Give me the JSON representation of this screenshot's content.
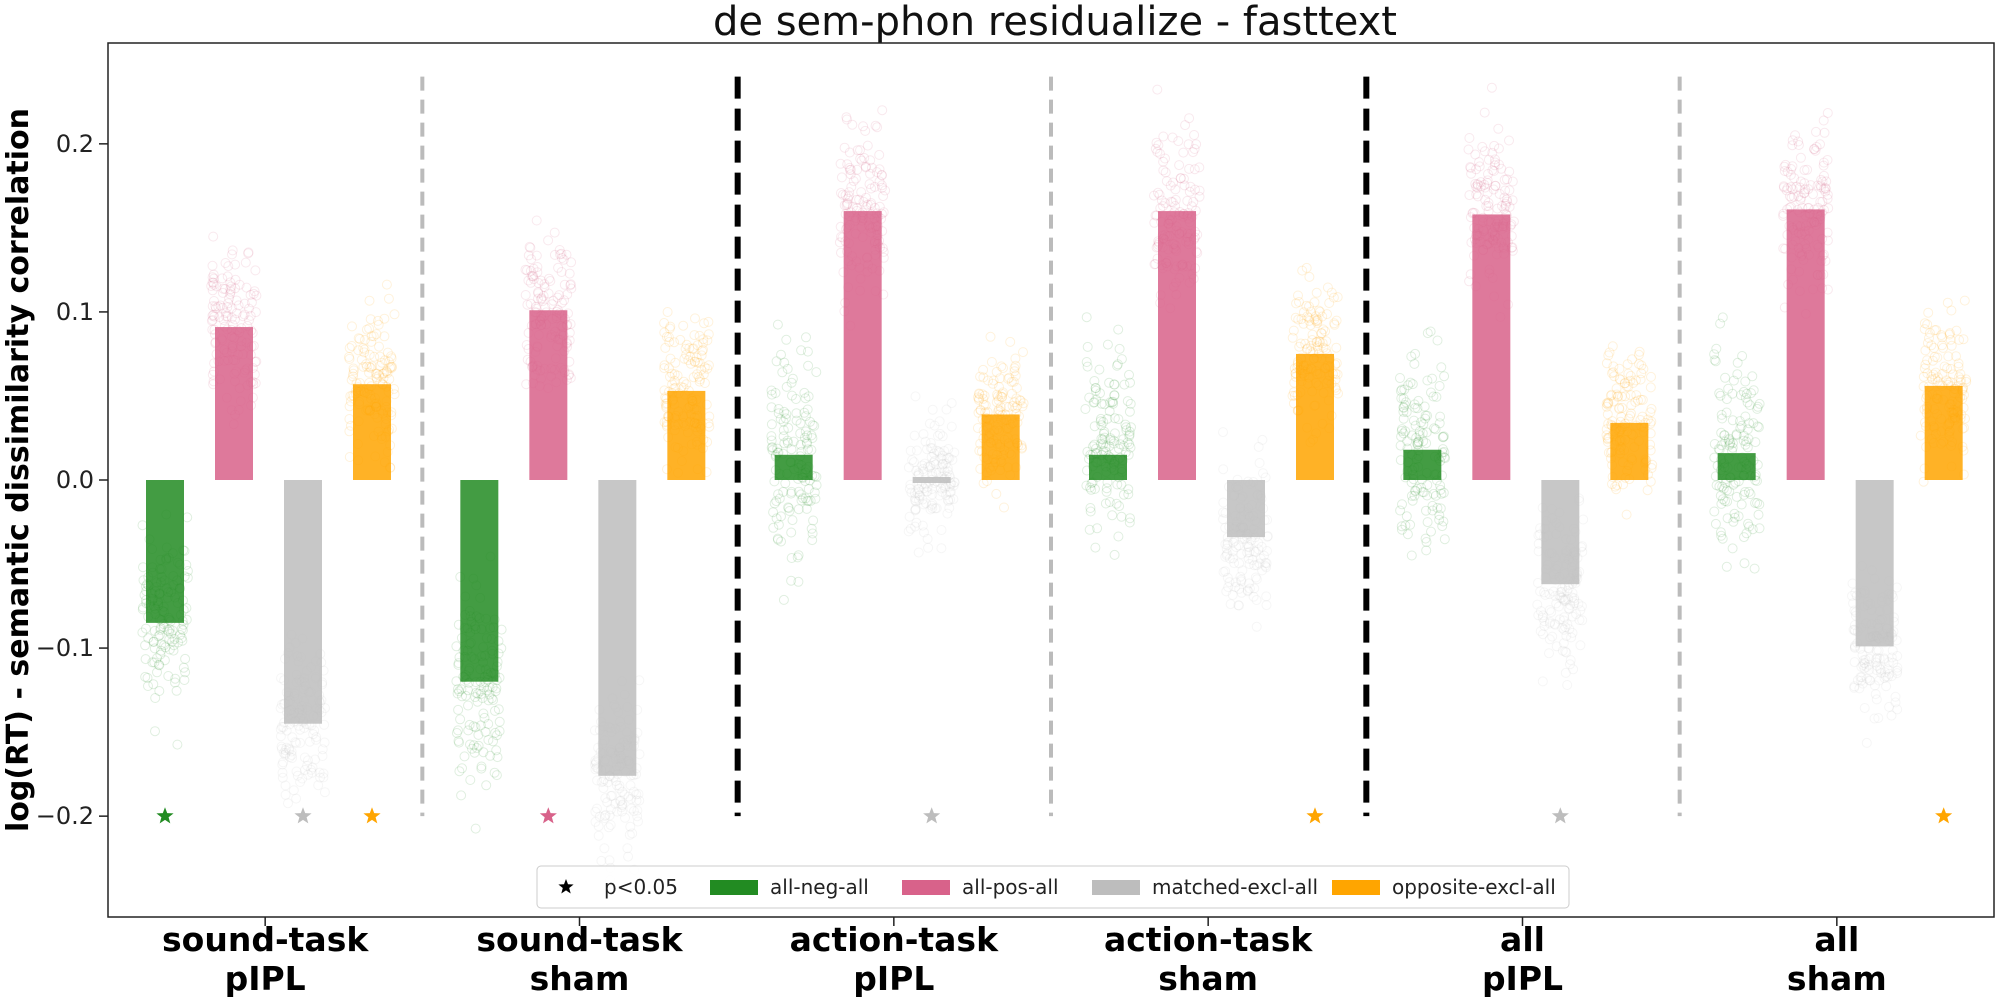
{
  "chart_data": {
    "type": "bar",
    "title": "de sem-phon residualize - fasttext",
    "ylabel": "log(RT) - semantic dissimilarity correlation",
    "xlabel": "",
    "ylim": [
      -0.26,
      0.26
    ],
    "yticks": [
      -0.2,
      -0.1,
      0.0,
      0.1,
      0.2
    ],
    "ytick_labels": [
      "−0.2",
      "−0.1",
      "0.0",
      "0.1",
      "0.2"
    ],
    "grid": false,
    "legend_position": "bottom-center",
    "groups": [
      {
        "line1": "sound-task",
        "line2": "pIPL"
      },
      {
        "line1": "sound-task",
        "line2": "sham"
      },
      {
        "line1": "action-task",
        "line2": "pIPL"
      },
      {
        "line1": "action-task",
        "line2": "sham"
      },
      {
        "line1": "all",
        "line2": "pIPL"
      },
      {
        "line1": "all",
        "line2": "sham"
      }
    ],
    "series": [
      {
        "name": "all-neg-all",
        "color": "#228B22",
        "values": [
          -0.085,
          -0.12,
          0.015,
          0.015,
          0.018,
          0.016
        ],
        "spread": [
          0.05,
          0.055,
          0.06,
          0.055,
          0.055,
          0.05
        ],
        "significant": [
          true,
          false,
          false,
          false,
          false,
          false
        ]
      },
      {
        "name": "all-pos-all",
        "color": "#D8628A",
        "values": [
          0.091,
          0.101,
          0.16,
          0.16,
          0.158,
          0.161
        ],
        "spread": [
          0.045,
          0.045,
          0.045,
          0.045,
          0.045,
          0.045
        ],
        "significant": [
          false,
          true,
          false,
          false,
          false,
          false
        ]
      },
      {
        "name": "matched-excl-all",
        "color": "#BDBDBD",
        "values": [
          -0.145,
          -0.176,
          0.003,
          -0.034,
          -0.062,
          -0.099
        ],
        "spread": [
          0.045,
          0.045,
          0.035,
          0.04,
          0.045,
          0.04
        ],
        "significant": [
          true,
          false,
          true,
          false,
          true,
          false
        ]
      },
      {
        "name": "opposite-excl-all",
        "color": "#FFA500",
        "values": [
          0.057,
          0.053,
          0.039,
          0.075,
          0.034,
          0.056
        ],
        "spread": [
          0.04,
          0.04,
          0.04,
          0.04,
          0.04,
          0.04
        ],
        "significant": [
          true,
          false,
          false,
          true,
          false,
          true
        ]
      }
    ],
    "star_y": -0.2,
    "separators": [
      {
        "after_group": 0,
        "style": "gray-dashed"
      },
      {
        "after_group": 1,
        "style": "black-dashed"
      },
      {
        "after_group": 2,
        "style": "gray-dashed"
      },
      {
        "after_group": 3,
        "style": "black-dashed"
      },
      {
        "after_group": 4,
        "style": "gray-dashed"
      }
    ],
    "legend": [
      {
        "label": "p<0.05",
        "marker": "star",
        "color": "#000000"
      },
      {
        "label": "all-neg-all",
        "marker": "rect",
        "color": "#228B22"
      },
      {
        "label": "all-pos-all",
        "marker": "rect",
        "color": "#D8628A"
      },
      {
        "label": "matched-excl-all",
        "marker": "rect",
        "color": "#BDBDBD"
      },
      {
        "label": "opposite-excl-all",
        "marker": "rect",
        "color": "#FFA500"
      }
    ]
  }
}
